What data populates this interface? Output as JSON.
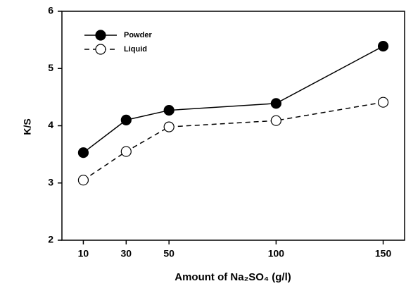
{
  "chart_data": {
    "type": "line",
    "x_label": "Amount of Na₂SO₄ (g/l)",
    "y_label": "K/S",
    "x": [
      10,
      30,
      50,
      100,
      150
    ],
    "series": [
      {
        "name": "Powder",
        "color": "#000000",
        "linestyle": "solid",
        "marker_fill": "#000000",
        "values": [
          3.53,
          4.1,
          4.27,
          4.39,
          5.39
        ]
      },
      {
        "name": "Liquid",
        "color": "#000000",
        "linestyle": "dashed",
        "marker_fill": "#ffffff",
        "values": [
          3.05,
          3.55,
          3.98,
          4.09,
          4.41
        ]
      }
    ],
    "xlim": [
      0,
      160
    ],
    "xticks": [
      10,
      30,
      50,
      100,
      150
    ],
    "ylim": [
      2,
      6
    ],
    "yticks": [
      2,
      3,
      4,
      5,
      6
    ],
    "legend": "upper left",
    "grid": false
  }
}
